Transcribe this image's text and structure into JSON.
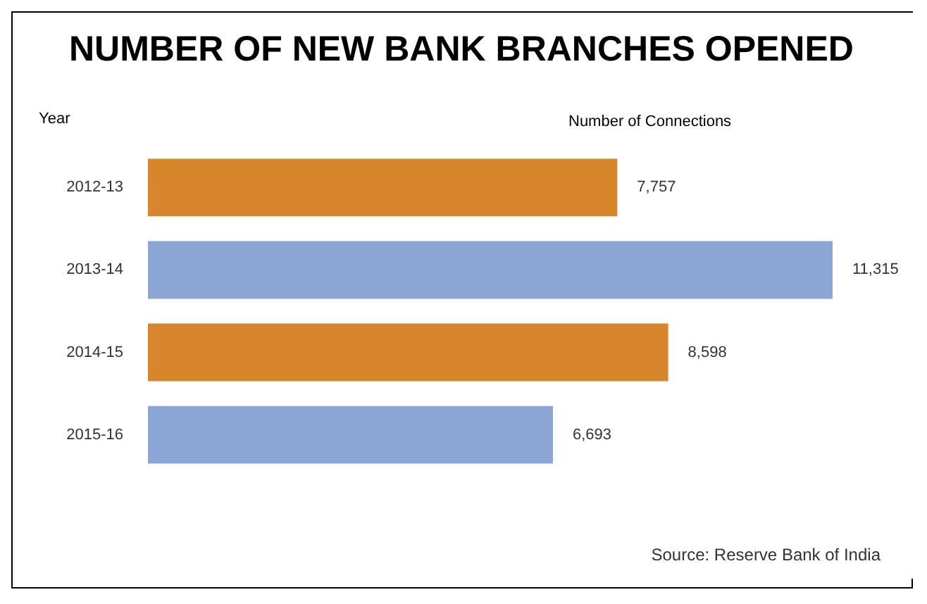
{
  "chart_data": {
    "type": "bar",
    "orientation": "horizontal",
    "title": "NUMBER OF NEW BANK BRANCHES OPENED",
    "xlabel": "Number of Connections",
    "ylabel": "Year",
    "categories": [
      "2012-13",
      "2013-14",
      "2014-15",
      "2015-16"
    ],
    "values": [
      7757,
      11315,
      8598,
      6693
    ],
    "colors": [
      "#d6862b",
      "#8ba5d4",
      "#d6862b",
      "#8ba5d4"
    ],
    "value_labels": [
      "7,757",
      "11,315",
      "8,598",
      "6,693"
    ],
    "annotations": [
      "Source: Reserve Bank of India"
    ]
  }
}
